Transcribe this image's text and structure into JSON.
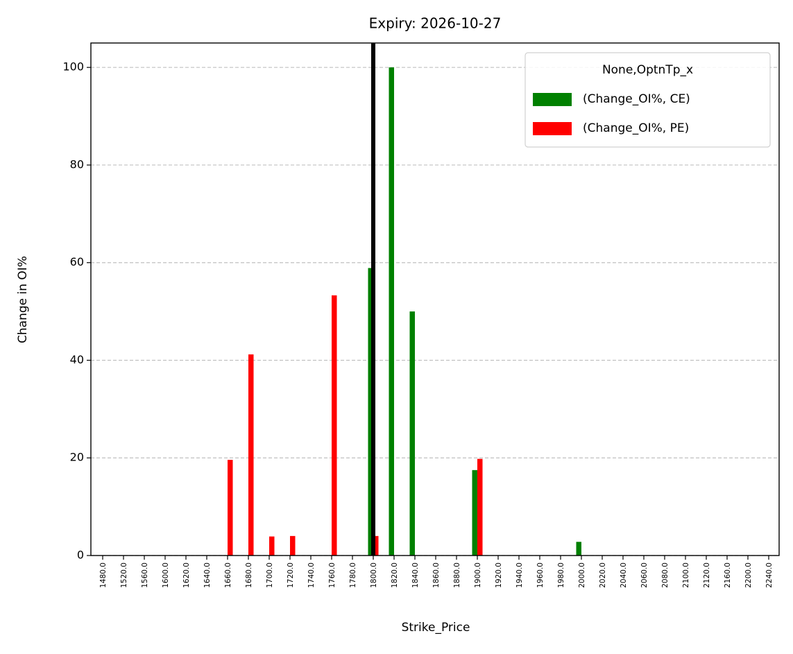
{
  "chart_data": {
    "type": "bar",
    "title": "Expiry: 2026-10-27",
    "x_label": "Strike_Price",
    "y_label": "Change in OI%",
    "categories": [
      "1480.0",
      "1520.0",
      "1560.0",
      "1600.0",
      "1620.0",
      "1640.0",
      "1660.0",
      "1680.0",
      "1700.0",
      "1720.0",
      "1740.0",
      "1760.0",
      "1780.0",
      "1800.0",
      "1820.0",
      "1840.0",
      "1860.0",
      "1880.0",
      "1900.0",
      "1920.0",
      "1940.0",
      "1960.0",
      "1980.0",
      "2000.0",
      "2020.0",
      "2040.0",
      "2060.0",
      "2080.0",
      "2100.0",
      "2120.0",
      "2160.0",
      "2200.0",
      "2240.0"
    ],
    "series": [
      {
        "name": " (Change_OI%, CE)",
        "color": "#008000",
        "values": [
          0,
          0,
          0,
          0,
          0,
          0,
          0,
          0,
          0,
          0,
          0,
          0,
          0,
          58.9,
          100,
          50,
          0,
          0,
          17.5,
          0,
          0,
          0,
          0,
          2.8,
          0,
          0,
          0,
          0,
          0,
          0,
          0,
          0,
          0
        ]
      },
      {
        "name": " (Change_OI%, PE)",
        "color": "#ff0000",
        "values": [
          0,
          0,
          0,
          0,
          0,
          0,
          19.6,
          41.2,
          3.9,
          4.0,
          0,
          53.3,
          0,
          4.0,
          0,
          0,
          0,
          0,
          19.8,
          0,
          0,
          0,
          0,
          0,
          0,
          0,
          0,
          0,
          0,
          0,
          0,
          0,
          0
        ]
      }
    ],
    "legend_title": "None,OptnTp_x",
    "legend": "upper right",
    "reference_line": {
      "x": "1800.0",
      "color": "#000000"
    },
    "ylim": [
      0,
      105
    ],
    "yticks": [
      0,
      20,
      40,
      60,
      80,
      100
    ],
    "grid": true
  }
}
